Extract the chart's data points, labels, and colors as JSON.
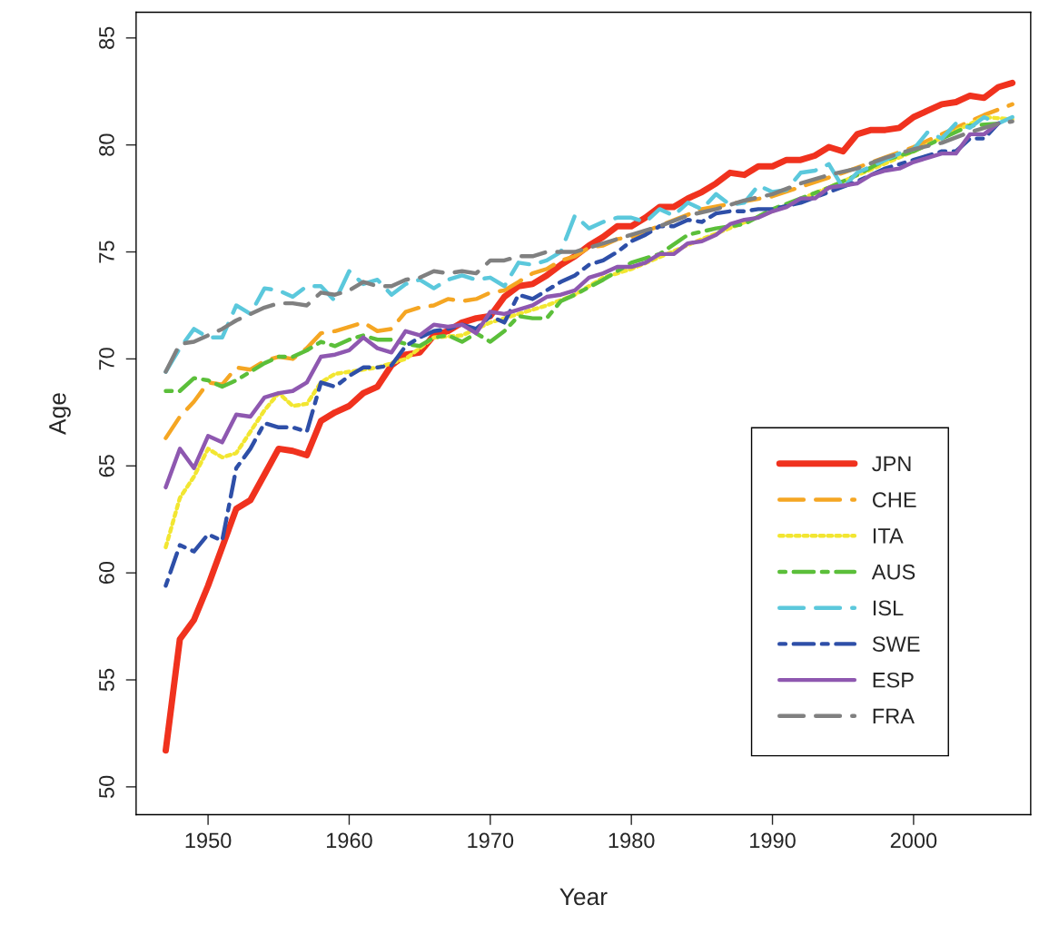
{
  "chart_data": {
    "type": "line",
    "xlabel": "Year",
    "ylabel": "Age",
    "xlim": [
      1944.9,
      2008.3
    ],
    "ylim": [
      48.7,
      86.2
    ],
    "xticks": [
      1950,
      1960,
      1970,
      1980,
      1990,
      2000
    ],
    "yticks": [
      50,
      55,
      60,
      65,
      70,
      75,
      80,
      85
    ],
    "grid": false,
    "legend": "bottom right",
    "marker": "none",
    "series": [
      {
        "name": "JPN",
        "color": "#f0321e",
        "line_style": "solid",
        "x": [
          1947,
          1948,
          1949,
          1950,
          1951,
          1952,
          1953,
          1954,
          1955,
          1956,
          1957,
          1958,
          1959,
          1960,
          1961,
          1962,
          1963,
          1964,
          1965,
          1966,
          1967,
          1968,
          1969,
          1970,
          1971,
          1972,
          1973,
          1974,
          1975,
          1976,
          1977,
          1978,
          1979,
          1980,
          1981,
          1982,
          1983,
          1984,
          1985,
          1986,
          1987,
          1988,
          1989,
          1990,
          1991,
          1992,
          1993,
          1994,
          1995,
          1996,
          1997,
          1998,
          1999,
          2000,
          2001,
          2002,
          2003,
          2004,
          2005,
          2006,
          2007
        ],
        "values": [
          51.7,
          56.9,
          57.8,
          59.4,
          61.2,
          63.0,
          63.4,
          64.6,
          65.8,
          65.7,
          65.5,
          67.1,
          67.5,
          67.8,
          68.4,
          68.7,
          69.7,
          70.2,
          70.3,
          71.1,
          71.3,
          71.7,
          71.9,
          72.0,
          72.9,
          73.4,
          73.5,
          73.9,
          74.4,
          74.8,
          75.3,
          75.7,
          76.2,
          76.2,
          76.6,
          77.1,
          77.1,
          77.5,
          77.8,
          78.2,
          78.7,
          78.6,
          79.0,
          79.0,
          79.3,
          79.3,
          79.5,
          79.9,
          79.7,
          80.5,
          80.7,
          80.7,
          80.8,
          81.3,
          81.6,
          81.9,
          82.0,
          82.3,
          82.2,
          82.7,
          82.9
        ]
      },
      {
        "name": "CHE",
        "color": "#f5a623",
        "line_style": "dashed",
        "x": [
          1947,
          1948,
          1949,
          1950,
          1951,
          1952,
          1953,
          1954,
          1955,
          1956,
          1957,
          1958,
          1959,
          1960,
          1961,
          1962,
          1963,
          1964,
          1965,
          1966,
          1967,
          1968,
          1969,
          1970,
          1971,
          1972,
          1973,
          1974,
          1975,
          1976,
          1977,
          1978,
          1979,
          1980,
          1985,
          1990,
          1995,
          2000,
          2005,
          2007
        ],
        "values": [
          66.3,
          67.3,
          68.0,
          68.9,
          68.8,
          69.6,
          69.5,
          69.9,
          70.1,
          70.0,
          70.5,
          71.2,
          71.3,
          71.5,
          71.7,
          71.3,
          71.4,
          72.2,
          72.4,
          72.5,
          72.8,
          72.7,
          72.8,
          73.1,
          73.2,
          73.6,
          74.0,
          74.2,
          74.6,
          74.8,
          75.2,
          75.3,
          75.6,
          75.7,
          77.0,
          77.6,
          78.7,
          79.9,
          81.4,
          81.9
        ]
      },
      {
        "name": "ITA",
        "color": "#f2e631",
        "line_style": "dotted",
        "x": [
          1947,
          1948,
          1949,
          1950,
          1951,
          1952,
          1953,
          1954,
          1955,
          1956,
          1957,
          1958,
          1959,
          1960,
          1962,
          1964,
          1966,
          1968,
          1970,
          1972,
          1974,
          1976,
          1978,
          1980,
          1985,
          1990,
          1995,
          2000,
          2005,
          2007
        ],
        "values": [
          61.2,
          63.5,
          64.5,
          65.8,
          65.4,
          65.6,
          66.6,
          67.6,
          68.4,
          67.8,
          67.9,
          68.9,
          69.3,
          69.4,
          69.6,
          70.0,
          71.0,
          71.1,
          71.7,
          72.1,
          72.5,
          73.0,
          73.8,
          74.2,
          75.6,
          76.9,
          78.3,
          79.7,
          81.3,
          81.2
        ]
      },
      {
        "name": "AUS",
        "color": "#5bbf3a",
        "line_style": "dashdot",
        "x": [
          1947,
          1948,
          1949,
          1950,
          1951,
          1952,
          1953,
          1954,
          1955,
          1956,
          1957,
          1958,
          1959,
          1960,
          1961,
          1962,
          1963,
          1964,
          1965,
          1966,
          1967,
          1968,
          1969,
          1970,
          1971,
          1972,
          1973,
          1974,
          1975,
          1976,
          1978,
          1980,
          1982,
          1984,
          1986,
          1988,
          1990,
          1992,
          1994,
          1996,
          1998,
          2000,
          2002,
          2004,
          2006
        ],
        "values": [
          68.5,
          68.5,
          69.1,
          69.0,
          68.7,
          69.0,
          69.4,
          69.8,
          70.1,
          70.1,
          70.4,
          70.8,
          70.6,
          70.9,
          71.1,
          70.9,
          70.9,
          70.7,
          70.6,
          71.0,
          71.1,
          70.8,
          71.2,
          70.8,
          71.3,
          72.0,
          71.9,
          71.9,
          72.7,
          73.0,
          73.7,
          74.5,
          74.9,
          75.8,
          76.1,
          76.3,
          77.0,
          77.5,
          78.0,
          78.6,
          79.3,
          79.7,
          80.3,
          80.9,
          81.0
        ]
      },
      {
        "name": "ISL",
        "color": "#5bc8dc",
        "line_style": "dashed",
        "x": [
          1947,
          1948,
          1949,
          1950,
          1951,
          1952,
          1953,
          1954,
          1955,
          1956,
          1957,
          1958,
          1959,
          1960,
          1961,
          1962,
          1963,
          1964,
          1965,
          1966,
          1967,
          1968,
          1969,
          1970,
          1971,
          1972,
          1973,
          1974,
          1975,
          1976,
          1977,
          1978,
          1979,
          1980,
          1981,
          1982,
          1983,
          1984,
          1985,
          1986,
          1987,
          1988,
          1989,
          1990,
          1991,
          1992,
          1993,
          1994,
          1995,
          1996,
          1997,
          1998,
          1999,
          2000,
          2001,
          2002,
          2003,
          2004,
          2005,
          2006,
          2007
        ],
        "values": [
          69.4,
          70.5,
          71.4,
          71.0,
          71.0,
          72.5,
          72.1,
          73.3,
          73.2,
          72.9,
          73.4,
          73.4,
          72.7,
          74.1,
          73.5,
          73.7,
          73.0,
          73.5,
          73.7,
          73.3,
          73.7,
          73.9,
          73.7,
          73.8,
          73.4,
          74.5,
          74.4,
          74.6,
          75.0,
          76.7,
          76.1,
          76.4,
          76.6,
          76.6,
          76.4,
          77.0,
          76.7,
          77.3,
          77.0,
          77.7,
          77.2,
          77.3,
          78.1,
          77.8,
          77.9,
          78.7,
          78.8,
          79.1,
          78.0,
          78.7,
          79.0,
          79.3,
          79.6,
          79.8,
          80.6,
          80.3,
          81.0,
          80.8,
          81.3,
          81.0,
          81.3
        ]
      },
      {
        "name": "SWE",
        "color": "#2e4fa8",
        "line_style": "dashdot",
        "x": [
          1947,
          1948,
          1949,
          1950,
          1951,
          1952,
          1953,
          1954,
          1955,
          1956,
          1957,
          1958,
          1959,
          1960,
          1961,
          1962,
          1963,
          1964,
          1965,
          1966,
          1967,
          1968,
          1969,
          1970,
          1971,
          1972,
          1973,
          1974,
          1975,
          1976,
          1977,
          1978,
          1979,
          1980,
          1981,
          1982,
          1983,
          1984,
          1985,
          1986,
          1987,
          1988,
          1989,
          1990,
          1992,
          1994,
          1996,
          1998,
          2000,
          2002,
          2003,
          2004,
          2005,
          2006
        ],
        "values": [
          59.4,
          61.3,
          61.0,
          61.8,
          61.5,
          64.9,
          65.8,
          67.0,
          66.8,
          66.8,
          66.6,
          68.9,
          68.7,
          69.2,
          69.6,
          69.6,
          69.7,
          70.6,
          71.0,
          71.3,
          71.4,
          71.6,
          71.4,
          72.0,
          71.7,
          73.0,
          72.8,
          73.2,
          73.6,
          73.9,
          74.4,
          74.6,
          75.0,
          75.5,
          75.8,
          76.2,
          76.2,
          76.5,
          76.4,
          76.8,
          76.9,
          76.9,
          77.0,
          77.0,
          77.3,
          77.8,
          78.3,
          78.9,
          79.3,
          79.7,
          79.7,
          80.3,
          80.3,
          81.0
        ]
      },
      {
        "name": "ESP",
        "color": "#8e58b0",
        "line_style": "solid",
        "x": [
          1947,
          1948,
          1949,
          1950,
          1951,
          1952,
          1953,
          1954,
          1955,
          1956,
          1957,
          1958,
          1959,
          1960,
          1961,
          1962,
          1963,
          1964,
          1965,
          1966,
          1967,
          1968,
          1969,
          1970,
          1971,
          1972,
          1973,
          1974,
          1975,
          1976,
          1977,
          1978,
          1979,
          1980,
          1981,
          1982,
          1983,
          1984,
          1985,
          1986,
          1987,
          1988,
          1989,
          1990,
          1991,
          1992,
          1993,
          1994,
          1995,
          1996,
          1997,
          1998,
          1999,
          2000,
          2001,
          2002,
          2003,
          2004,
          2005,
          2006
        ],
        "values": [
          64.0,
          65.8,
          64.9,
          66.4,
          66.1,
          67.4,
          67.3,
          68.2,
          68.4,
          68.5,
          68.9,
          70.1,
          70.2,
          70.4,
          71.0,
          70.5,
          70.3,
          71.3,
          71.1,
          71.6,
          71.5,
          71.6,
          71.2,
          72.2,
          72.1,
          72.3,
          72.5,
          72.9,
          73.0,
          73.2,
          73.8,
          74.0,
          74.3,
          74.3,
          74.5,
          74.9,
          74.9,
          75.4,
          75.5,
          75.8,
          76.3,
          76.5,
          76.6,
          76.9,
          77.1,
          77.5,
          77.5,
          78.0,
          78.1,
          78.2,
          78.6,
          78.8,
          78.9,
          79.2,
          79.4,
          79.6,
          79.6,
          80.5,
          80.5,
          81.0
        ]
      },
      {
        "name": "FRA",
        "color": "#808080",
        "line_style": "dashed",
        "x": [
          1947,
          1948,
          1949,
          1950,
          1951,
          1952,
          1953,
          1954,
          1955,
          1956,
          1957,
          1958,
          1959,
          1960,
          1961,
          1962,
          1963,
          1964,
          1965,
          1966,
          1967,
          1968,
          1969,
          1970,
          1971,
          1972,
          1973,
          1974,
          1975,
          1976,
          1978,
          1980,
          1982,
          1984,
          1986,
          1988,
          1990,
          1992,
          1994,
          1996,
          1998,
          2000,
          2002,
          2004,
          2006,
          2007
        ],
        "values": [
          69.4,
          70.7,
          70.8,
          71.1,
          71.4,
          71.8,
          72.1,
          72.4,
          72.6,
          72.6,
          72.5,
          73.1,
          73.0,
          73.2,
          73.6,
          73.4,
          73.4,
          73.7,
          73.8,
          74.1,
          74.0,
          74.1,
          74.0,
          74.6,
          74.6,
          74.8,
          74.8,
          75.0,
          75.0,
          75.0,
          75.4,
          75.8,
          76.2,
          76.7,
          77.0,
          77.4,
          77.7,
          78.2,
          78.6,
          78.9,
          79.4,
          79.8,
          80.1,
          80.6,
          81.0,
          81.1
        ]
      }
    ]
  }
}
